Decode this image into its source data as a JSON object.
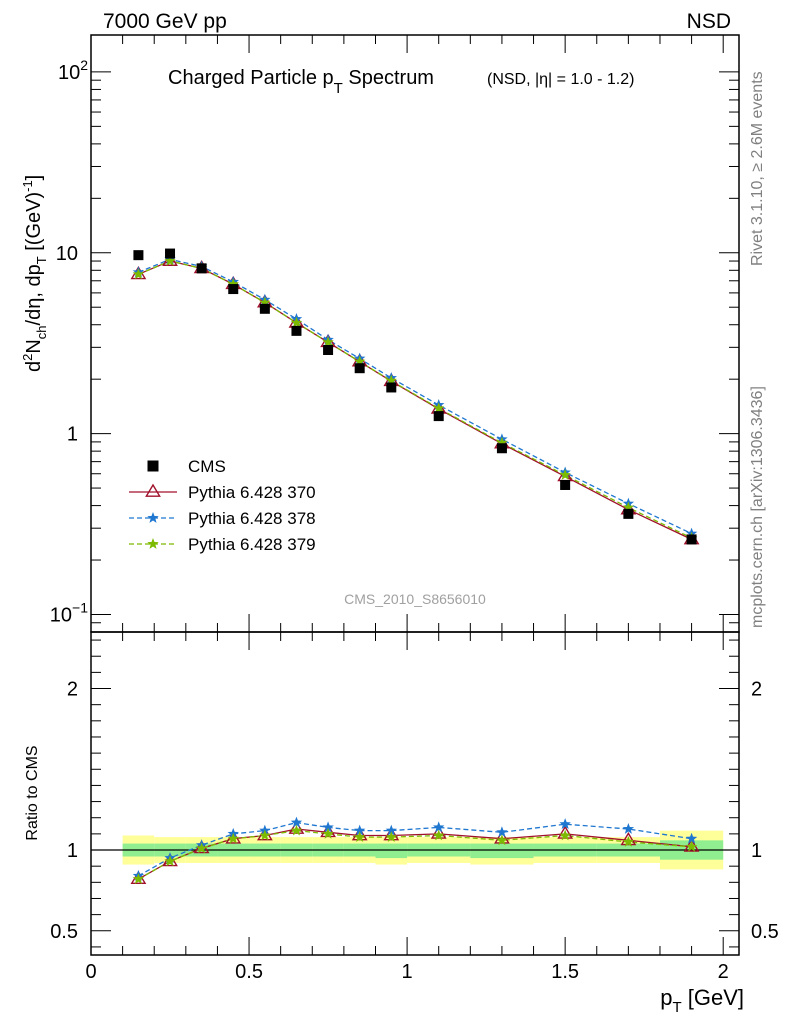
{
  "header": {
    "left": "7000 GeV pp",
    "right": "NSD"
  },
  "side_labels": {
    "rivet": "Rivet 3.1.10, ≥ 2.6M events",
    "mcplots": "mcplots.cern.ch [arXiv:1306.3436]"
  },
  "chart_data": [
    {
      "type": "scatter",
      "panel": "main",
      "title_main": "Charged Particle p",
      "title_sub": "T",
      "title_main2": " Spectrum",
      "title_small": "(NSD, |η| = 1.0 - 1.2)",
      "ylabel": "d²N_ch/dη, dp_T [(GeV)⁻¹]",
      "ylabel_parts": {
        "d": "d",
        "sup2": "2",
        "N": "N",
        "ch": "ch",
        "mid": "/dη, dp",
        "T": "T",
        "bracket": " [(GeV)",
        "sup": "-1",
        "close": "]"
      },
      "yscale": "log",
      "ylim": [
        0.08,
        160
      ],
      "xlim": [
        0,
        2.05
      ],
      "y_ticks": [
        {
          "value": 0.1,
          "base": "10",
          "exp": "−1"
        },
        {
          "value": 1,
          "base": "1",
          "exp": ""
        },
        {
          "value": 10,
          "base": "10",
          "exp": ""
        },
        {
          "value": 100,
          "base": "10",
          "exp": "2"
        }
      ],
      "watermark": "CMS_2010_S8656010",
      "legend_position": "middle-left",
      "x": [
        0.15,
        0.25,
        0.35,
        0.45,
        0.55,
        0.65,
        0.75,
        0.85,
        0.95,
        1.1,
        1.3,
        1.5,
        1.7,
        1.9
      ],
      "series": [
        {
          "name": "CMS",
          "color": "#000000",
          "marker": "square",
          "line": "none",
          "values": [
            9.7,
            9.9,
            8.2,
            6.3,
            4.9,
            3.7,
            2.9,
            2.3,
            1.8,
            1.25,
            0.83,
            0.52,
            0.36,
            0.26
          ]
        },
        {
          "name": "Pythia 6.428 370",
          "color": "#a0102a",
          "marker": "triangle",
          "line": "solid",
          "values": [
            7.6,
            9.0,
            8.2,
            6.7,
            5.3,
            4.1,
            3.2,
            2.5,
            1.95,
            1.37,
            0.88,
            0.58,
            0.38,
            0.26
          ]
        },
        {
          "name": "Pythia 6.428 378",
          "color": "#1f77d0",
          "marker": "star",
          "line": "dashed",
          "values": [
            7.8,
            9.2,
            8.4,
            6.9,
            5.5,
            4.3,
            3.3,
            2.6,
            2.03,
            1.44,
            0.93,
            0.61,
            0.41,
            0.28
          ]
        },
        {
          "name": "Pythia 6.428 379",
          "color": "#7cbb00",
          "marker": "star",
          "line": "dashed",
          "values": [
            7.6,
            9.0,
            8.2,
            6.7,
            5.3,
            4.1,
            3.2,
            2.5,
            1.96,
            1.38,
            0.89,
            0.59,
            0.39,
            0.265
          ]
        }
      ]
    },
    {
      "type": "scatter",
      "panel": "ratio",
      "ylabel": "Ratio to CMS",
      "xlabel": "p",
      "xlabel_sub": "T",
      "xlabel_unit": " [GeV]",
      "ylim": [
        0.35,
        2.35
      ],
      "xlim": [
        0,
        2.05
      ],
      "y_ticks": [
        0.5,
        1,
        2
      ],
      "y_tick_labels": [
        "0.5",
        "1",
        "2"
      ],
      "x_ticks": [
        0,
        0.5,
        1,
        1.5,
        2
      ],
      "x_tick_labels": [
        "0",
        "0.5",
        "1",
        "1.5",
        "2"
      ],
      "bands": [
        {
          "x0": 0.1,
          "x1": 0.2,
          "yellow": [
            0.91,
            1.09
          ],
          "green": [
            0.96,
            1.04
          ]
        },
        {
          "x0": 0.2,
          "x1": 0.3,
          "yellow": [
            0.92,
            1.08
          ],
          "green": [
            0.96,
            1.04
          ]
        },
        {
          "x0": 0.3,
          "x1": 0.4,
          "yellow": [
            0.92,
            1.08
          ],
          "green": [
            0.96,
            1.04
          ]
        },
        {
          "x0": 0.4,
          "x1": 0.5,
          "yellow": [
            0.92,
            1.08
          ],
          "green": [
            0.96,
            1.04
          ]
        },
        {
          "x0": 0.5,
          "x1": 0.6,
          "yellow": [
            0.92,
            1.08
          ],
          "green": [
            0.96,
            1.04
          ]
        },
        {
          "x0": 0.6,
          "x1": 0.7,
          "yellow": [
            0.92,
            1.08
          ],
          "green": [
            0.96,
            1.04
          ]
        },
        {
          "x0": 0.7,
          "x1": 0.8,
          "yellow": [
            0.92,
            1.08
          ],
          "green": [
            0.96,
            1.04
          ]
        },
        {
          "x0": 0.8,
          "x1": 0.9,
          "yellow": [
            0.92,
            1.08
          ],
          "green": [
            0.96,
            1.04
          ]
        },
        {
          "x0": 0.9,
          "x1": 1.0,
          "yellow": [
            0.91,
            1.08
          ],
          "green": [
            0.95,
            1.04
          ]
        },
        {
          "x0": 1.0,
          "x1": 1.2,
          "yellow": [
            0.92,
            1.08
          ],
          "green": [
            0.96,
            1.04
          ]
        },
        {
          "x0": 1.2,
          "x1": 1.4,
          "yellow": [
            0.91,
            1.08
          ],
          "green": [
            0.95,
            1.04
          ]
        },
        {
          "x0": 1.4,
          "x1": 1.6,
          "yellow": [
            0.92,
            1.08
          ],
          "green": [
            0.96,
            1.04
          ]
        },
        {
          "x0": 1.6,
          "x1": 1.8,
          "yellow": [
            0.92,
            1.08
          ],
          "green": [
            0.96,
            1.04
          ]
        },
        {
          "x0": 1.8,
          "x1": 2.0,
          "yellow": [
            0.88,
            1.12
          ],
          "green": [
            0.94,
            1.06
          ]
        }
      ],
      "x": [
        0.15,
        0.25,
        0.35,
        0.45,
        0.55,
        0.65,
        0.75,
        0.85,
        0.95,
        1.1,
        1.3,
        1.5,
        1.7,
        1.9
      ],
      "series": [
        {
          "name": "Pythia 6.428 370",
          "color": "#a0102a",
          "marker": "triangle",
          "line": "solid",
          "values": [
            0.82,
            0.93,
            1.01,
            1.07,
            1.09,
            1.13,
            1.11,
            1.09,
            1.09,
            1.1,
            1.07,
            1.1,
            1.06,
            1.02
          ]
        },
        {
          "name": "Pythia 6.428 378",
          "color": "#1f77d0",
          "marker": "star",
          "line": "dashed",
          "values": [
            0.84,
            0.95,
            1.03,
            1.1,
            1.12,
            1.17,
            1.14,
            1.12,
            1.12,
            1.14,
            1.11,
            1.16,
            1.13,
            1.07
          ]
        },
        {
          "name": "Pythia 6.428 379",
          "color": "#7cbb00",
          "marker": "star",
          "line": "dashed",
          "values": [
            0.82,
            0.93,
            1.01,
            1.07,
            1.09,
            1.12,
            1.1,
            1.08,
            1.08,
            1.09,
            1.06,
            1.09,
            1.05,
            1.02
          ]
        }
      ]
    }
  ]
}
